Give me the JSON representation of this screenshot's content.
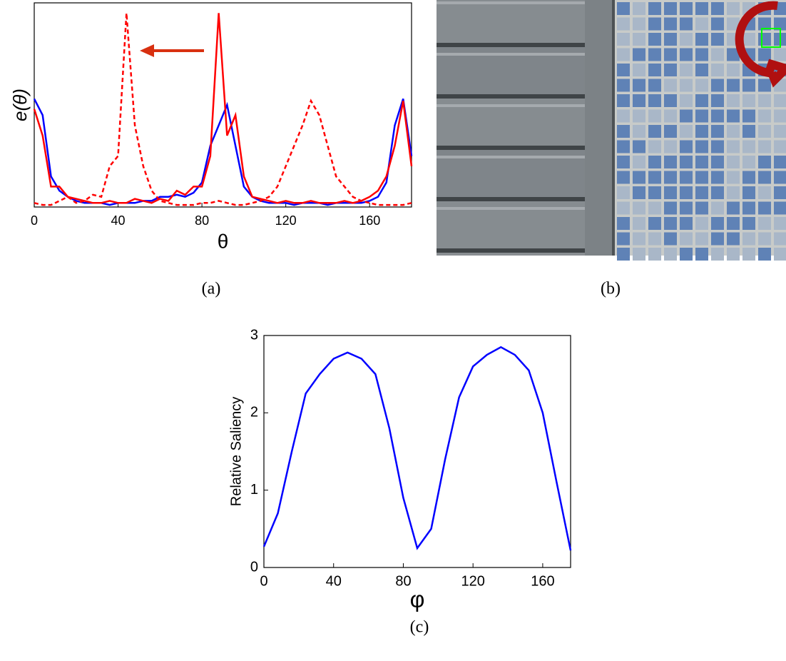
{
  "chart_data": [
    {
      "type": "line",
      "x_label": "θ",
      "y_label": "e(θ)",
      "xlim": [
        0,
        180
      ],
      "ylim": [
        0,
        1
      ],
      "xticks": [
        0,
        40,
        80,
        120,
        160
      ],
      "x": [
        0,
        4,
        8,
        12,
        16,
        20,
        24,
        28,
        32,
        36,
        40,
        44,
        48,
        52,
        56,
        60,
        64,
        68,
        72,
        76,
        80,
        84,
        88,
        92,
        96,
        100,
        104,
        108,
        112,
        116,
        120,
        124,
        128,
        132,
        136,
        140,
        144,
        148,
        152,
        156,
        160,
        164,
        168,
        172,
        176,
        180
      ],
      "series": [
        {
          "color": "#0000ff",
          "linestyle": "solid",
          "values": [
            0.53,
            0.45,
            0.15,
            0.08,
            0.05,
            0.03,
            0.02,
            0.02,
            0.02,
            0.01,
            0.02,
            0.02,
            0.02,
            0.03,
            0.03,
            0.05,
            0.05,
            0.06,
            0.05,
            0.07,
            0.12,
            0.3,
            0.4,
            0.5,
            0.3,
            0.1,
            0.05,
            0.03,
            0.02,
            0.02,
            0.02,
            0.01,
            0.02,
            0.02,
            0.02,
            0.01,
            0.02,
            0.02,
            0.02,
            0.02,
            0.03,
            0.05,
            0.12,
            0.4,
            0.53,
            0.25
          ]
        },
        {
          "color": "#ff0000",
          "linestyle": "solid",
          "values": [
            0.48,
            0.35,
            0.1,
            0.1,
            0.05,
            0.04,
            0.03,
            0.02,
            0.02,
            0.03,
            0.02,
            0.02,
            0.04,
            0.03,
            0.02,
            0.04,
            0.03,
            0.08,
            0.06,
            0.1,
            0.1,
            0.25,
            0.95,
            0.35,
            0.45,
            0.15,
            0.05,
            0.04,
            0.03,
            0.02,
            0.03,
            0.02,
            0.02,
            0.03,
            0.02,
            0.02,
            0.02,
            0.03,
            0.02,
            0.03,
            0.05,
            0.08,
            0.15,
            0.3,
            0.52,
            0.2
          ]
        },
        {
          "color": "#ff0000",
          "linestyle": "dashed",
          "values": [
            0.02,
            0.01,
            0.01,
            0.03,
            0.05,
            0.02,
            0.03,
            0.06,
            0.05,
            0.2,
            0.25,
            0.95,
            0.4,
            0.2,
            0.08,
            0.03,
            0.02,
            0.01,
            0.01,
            0.01,
            0.02,
            0.02,
            0.03,
            0.02,
            0.01,
            0.01,
            0.02,
            0.03,
            0.05,
            0.1,
            0.2,
            0.3,
            0.4,
            0.52,
            0.45,
            0.3,
            0.15,
            0.1,
            0.05,
            0.03,
            0.02,
            0.01,
            0.01,
            0.01,
            0.01,
            0.02
          ]
        }
      ]
    },
    {
      "type": "line",
      "x_label": "φ",
      "y_label": "Relative Saliency",
      "xlim": [
        0,
        176
      ],
      "ylim": [
        0,
        3
      ],
      "xticks": [
        0,
        40,
        80,
        120,
        160
      ],
      "yticks": [
        0,
        1,
        2,
        3
      ],
      "x": [
        0,
        8,
        16,
        24,
        32,
        40,
        48,
        56,
        64,
        72,
        80,
        88,
        96,
        104,
        112,
        120,
        128,
        136,
        144,
        152,
        160,
        168,
        176
      ],
      "series": [
        {
          "color": "#0000ff",
          "linestyle": "solid",
          "values": [
            0.27,
            0.7,
            1.5,
            2.25,
            2.5,
            2.7,
            2.78,
            2.7,
            2.5,
            1.8,
            0.9,
            0.25,
            0.5,
            1.4,
            2.2,
            2.6,
            2.75,
            2.85,
            2.75,
            2.55,
            2.0,
            1.1,
            0.22
          ]
        }
      ]
    }
  ],
  "captions": [
    "(a)",
    "(b)",
    "(c)"
  ]
}
